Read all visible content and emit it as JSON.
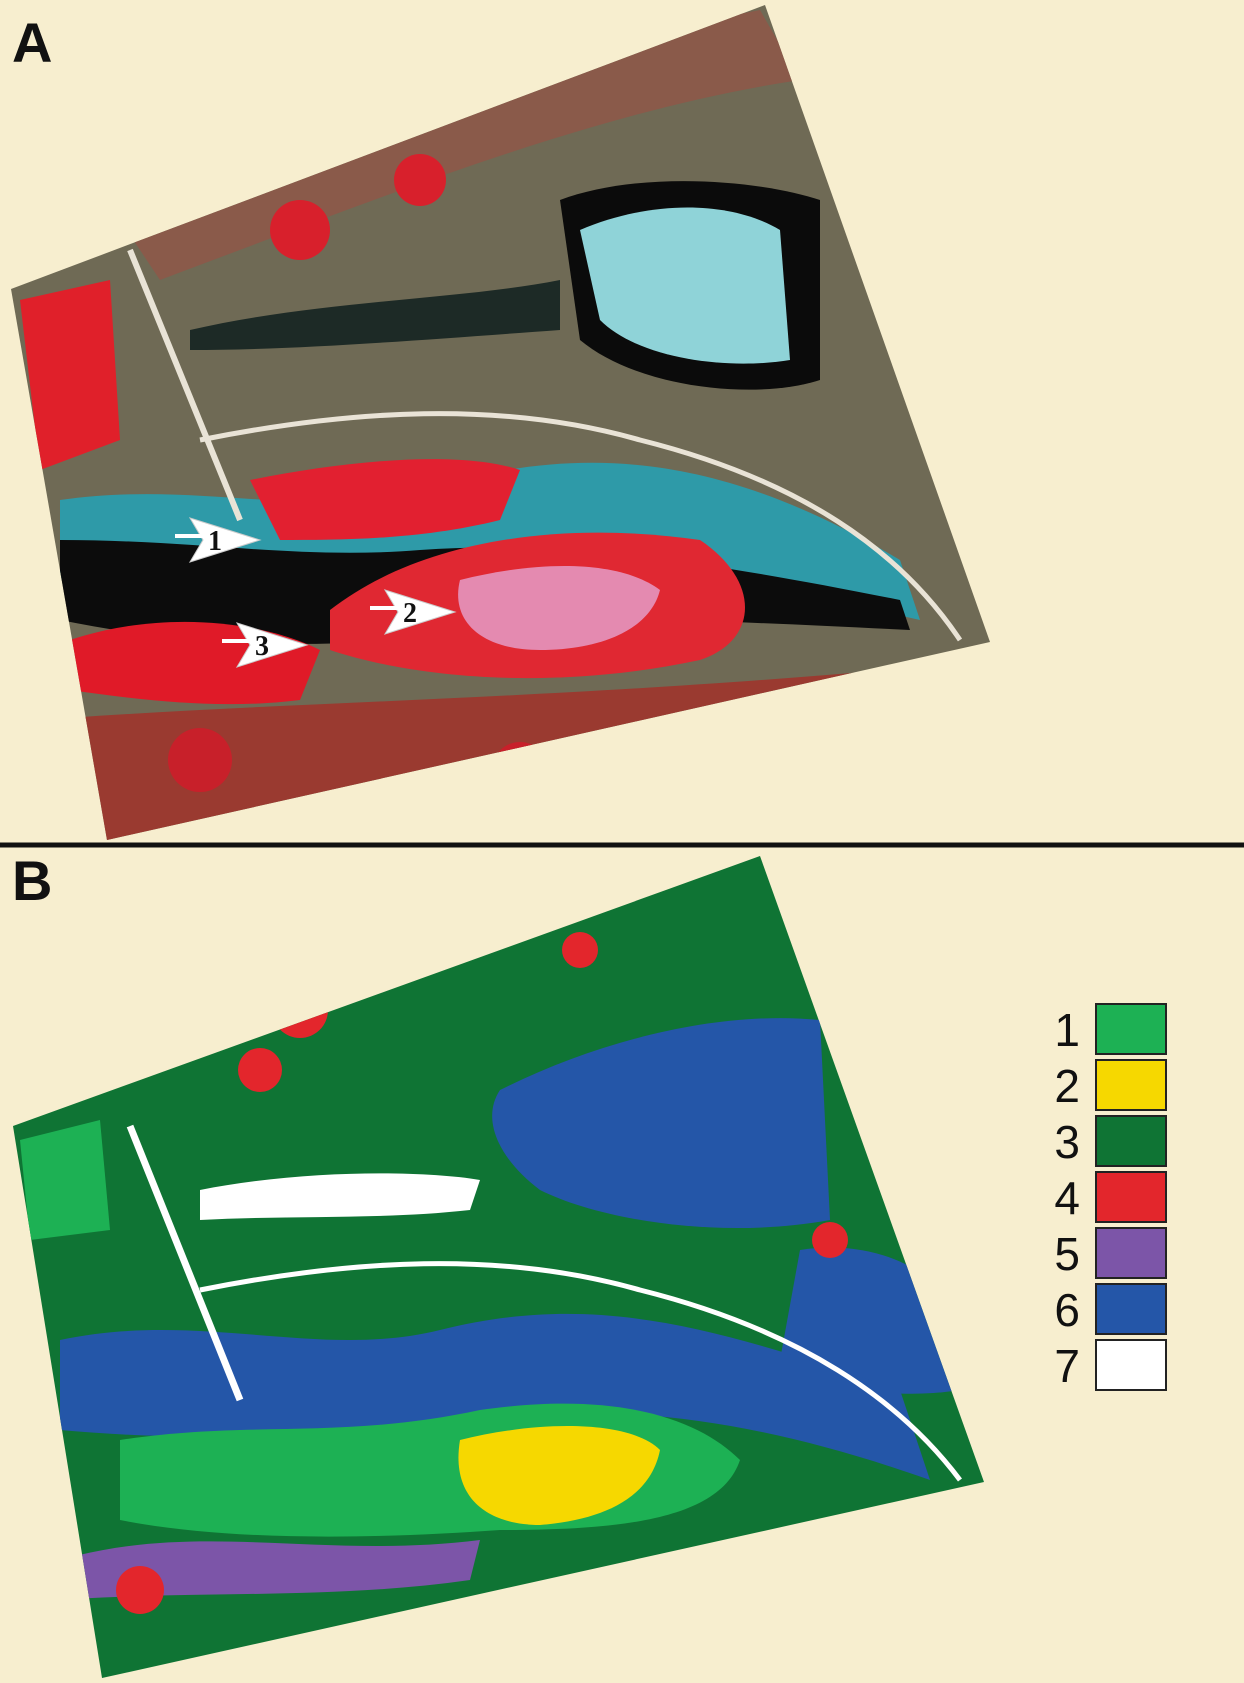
{
  "panels": [
    {
      "label": "A",
      "markers": [
        "1",
        "2",
        "3"
      ]
    },
    {
      "label": "B",
      "legend": [
        {
          "label": "1",
          "color": "#1db154"
        },
        {
          "label": "2",
          "color": "#f6d800"
        },
        {
          "label": "3",
          "color": "#0f7434"
        },
        {
          "label": "4",
          "color": "#e3262c"
        },
        {
          "label": "5",
          "color": "#7c55a8"
        },
        {
          "label": "6",
          "color": "#2456a8"
        },
        {
          "label": "7",
          "color": "#ffffff"
        }
      ]
    }
  ]
}
